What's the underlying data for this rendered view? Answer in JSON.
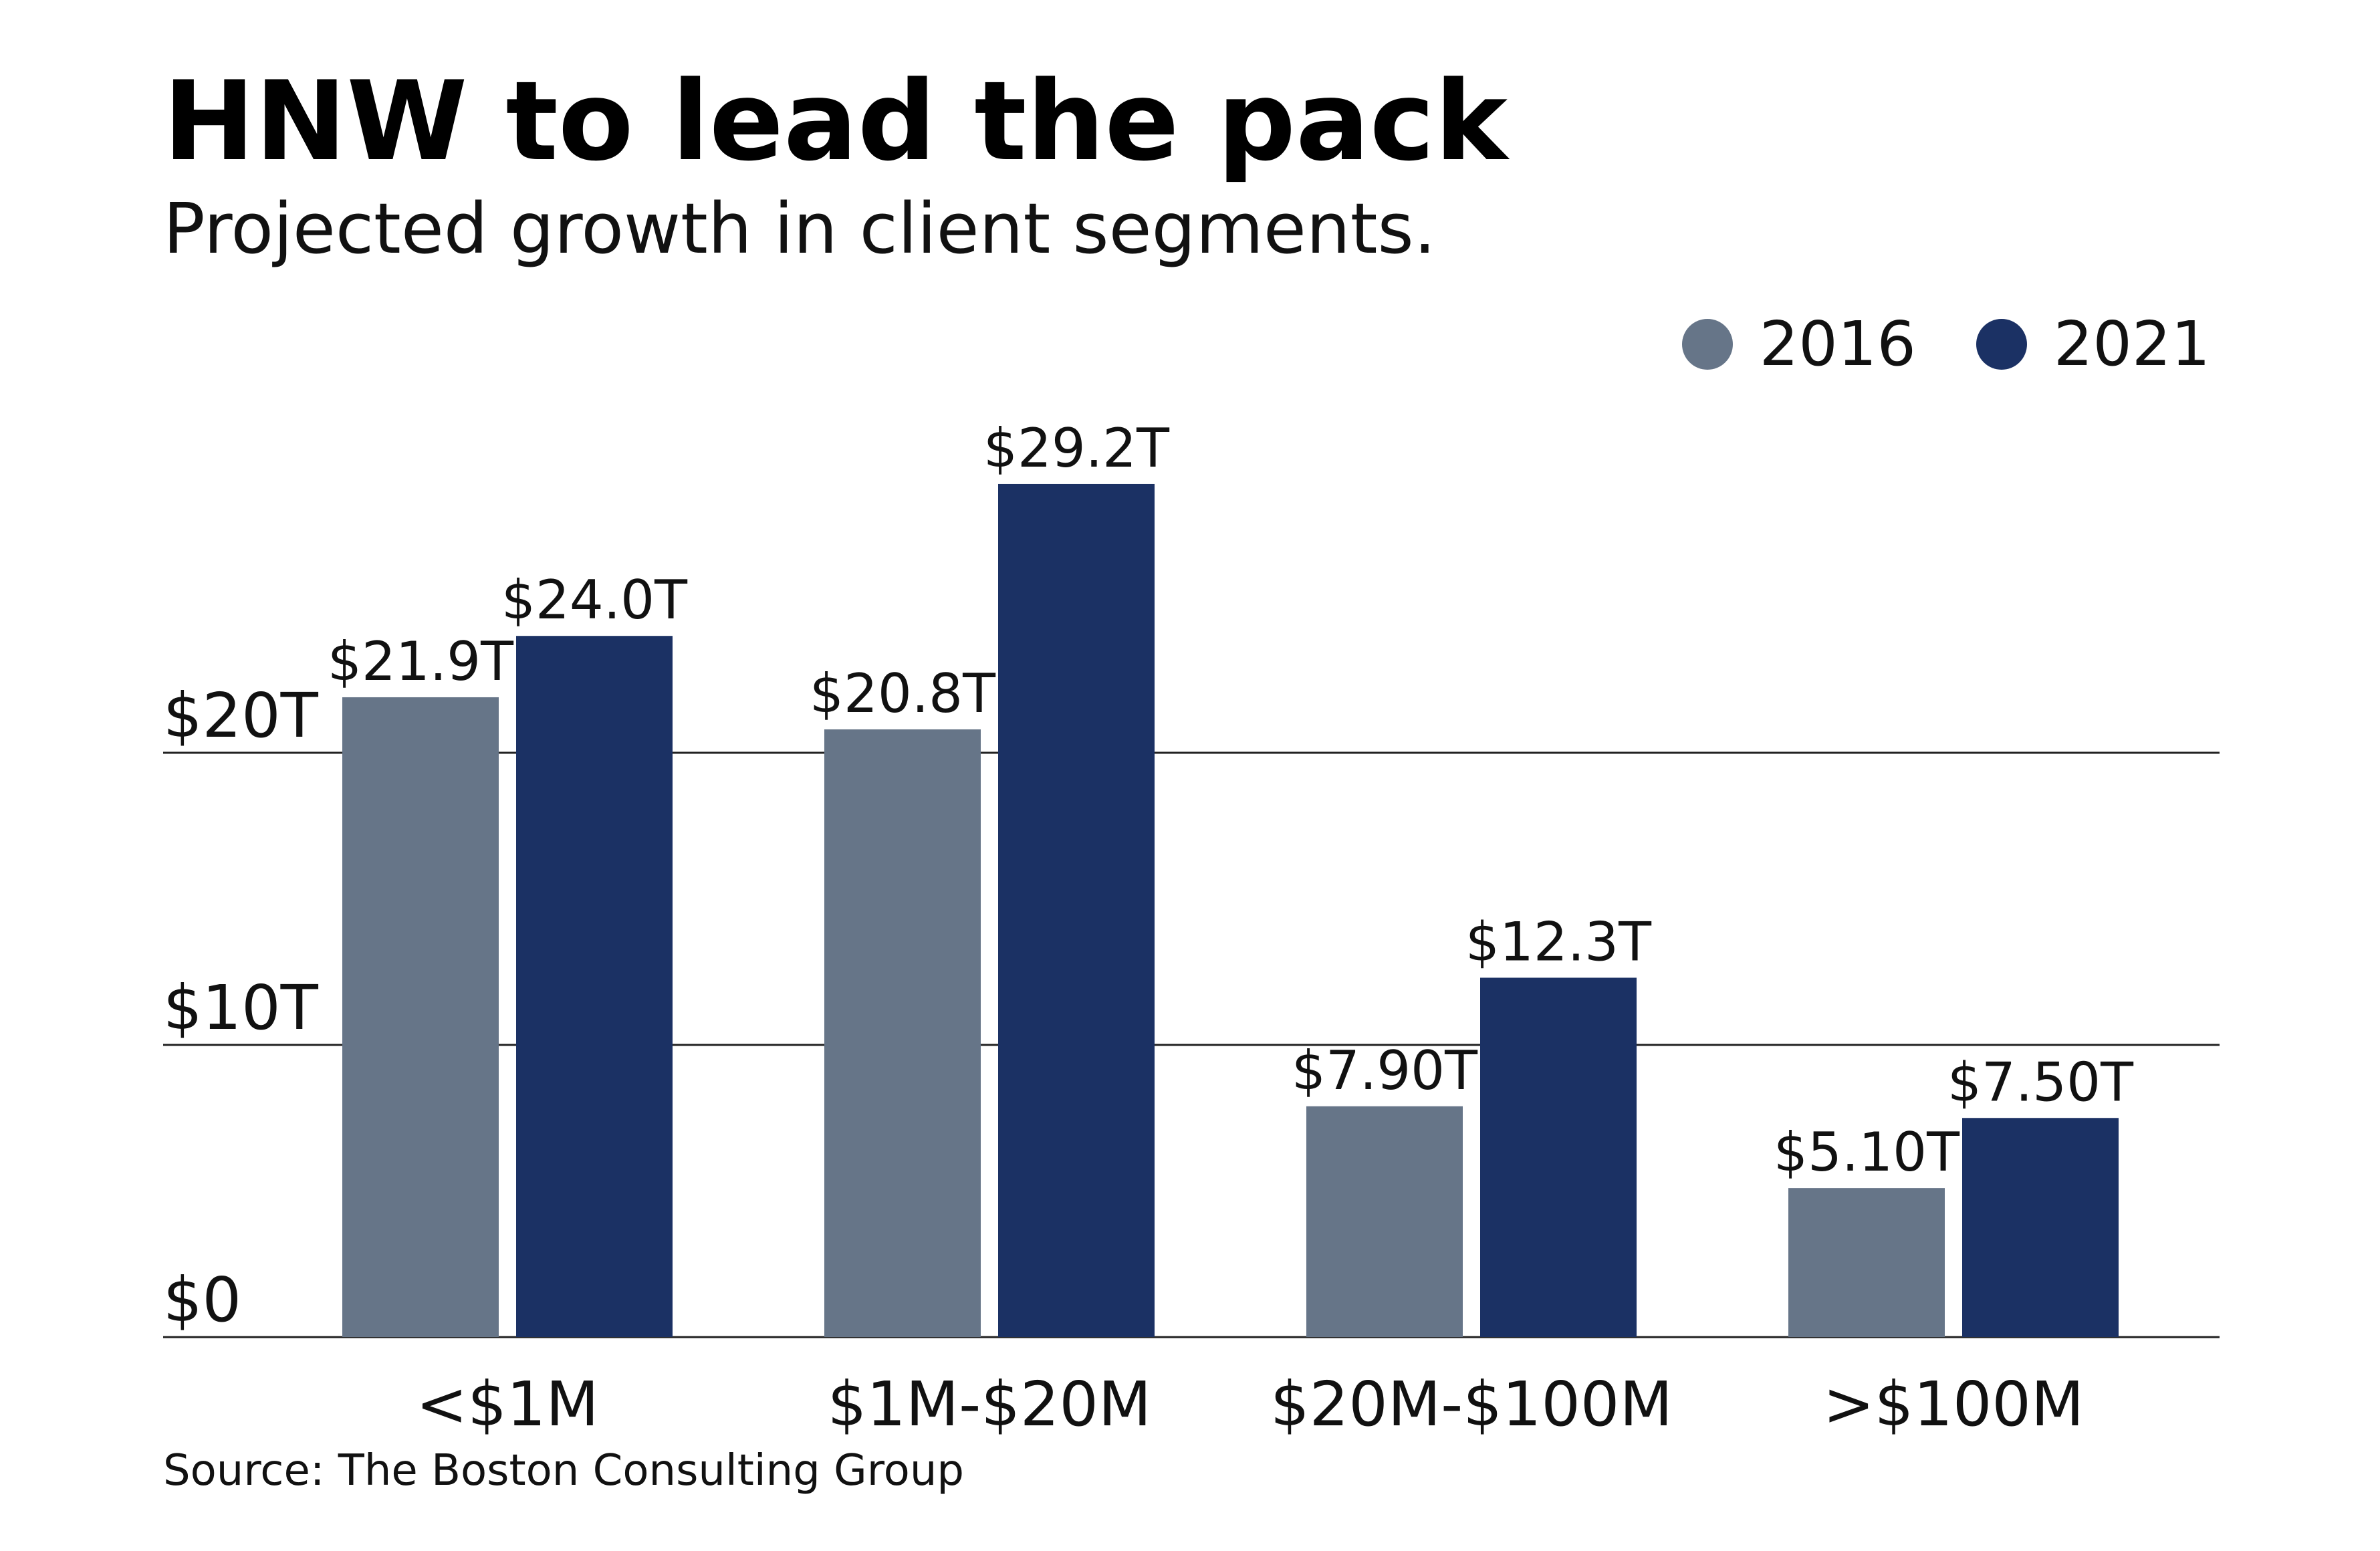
{
  "chart_data": {
    "type": "bar",
    "title": "HNW to lead the pack",
    "subtitle": "Projected growth in client segments.",
    "categories": [
      "<$1M",
      "$1M-$20M",
      "$20M-$100M",
      ">$100M"
    ],
    "series": [
      {
        "name": "2016",
        "color": "#667588",
        "values": [
          21.9,
          20.8,
          7.9,
          5.1
        ],
        "labels": [
          "$21.9T",
          "$20.8T",
          "$7.90T",
          "$5.10T"
        ]
      },
      {
        "name": "2021",
        "color": "#1b3164",
        "values": [
          24.0,
          29.2,
          12.3,
          7.5
        ],
        "labels": [
          "$24.0T",
          "$29.2T",
          "$12.3T",
          "$7.50T"
        ]
      }
    ],
    "ylim": [
      0,
      30
    ],
    "yticks": [
      0,
      10,
      20
    ],
    "ytick_labels": [
      "$0",
      "$10T",
      "$20T"
    ],
    "grid": true,
    "legend_position": "top-right",
    "source": "Source: The Boston Consulting Group"
  }
}
